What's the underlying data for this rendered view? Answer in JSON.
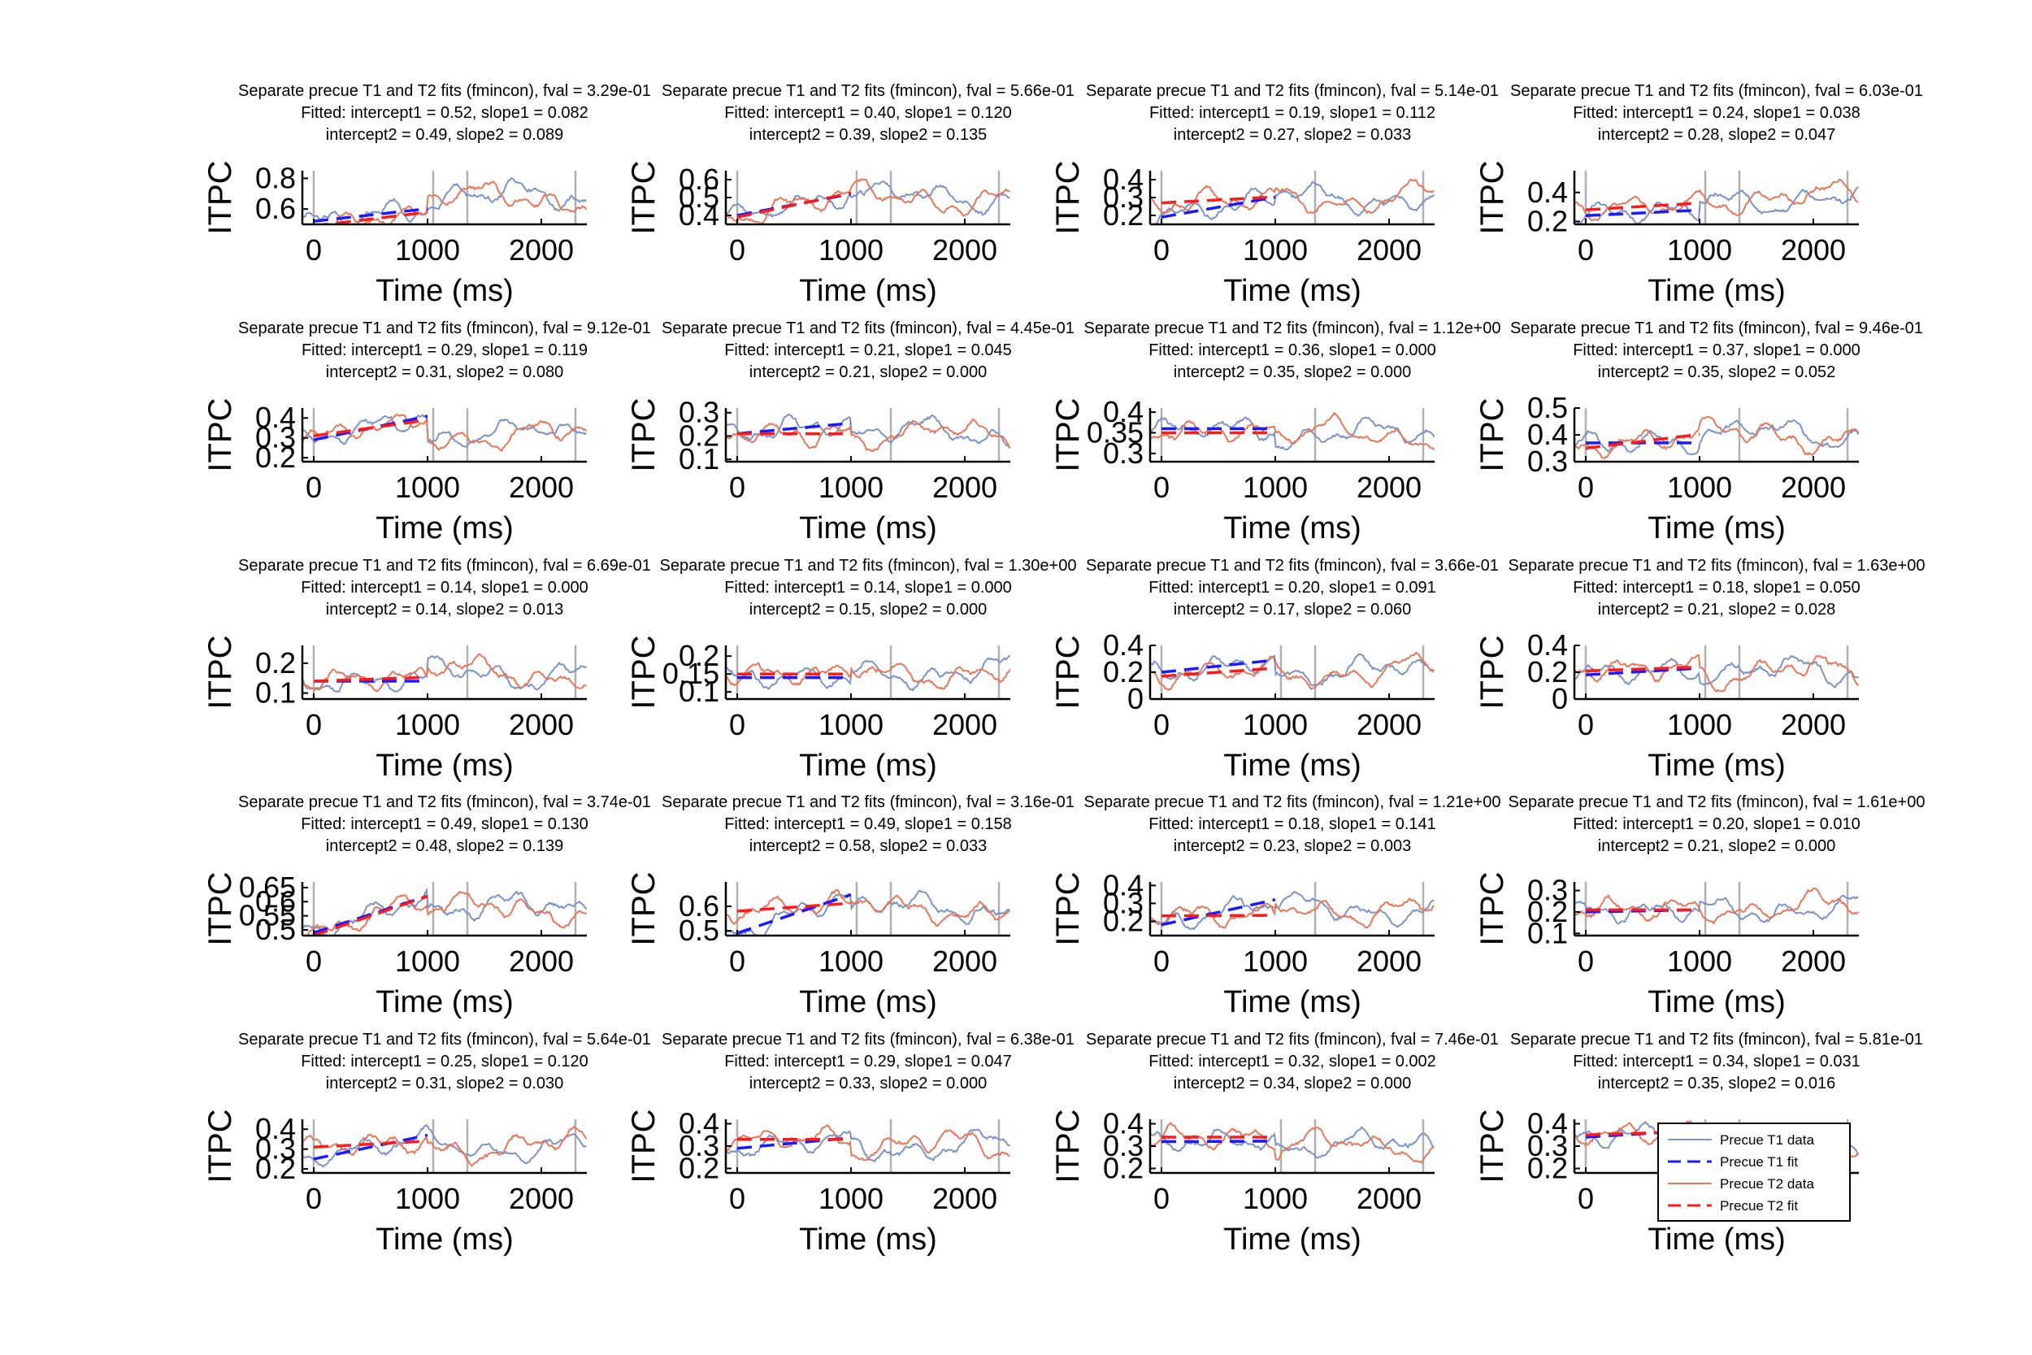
{
  "xlabel": "Time (ms)",
  "ylabel": "ITPC",
  "legend": {
    "placement": "inside-lower-right-of-last-panel",
    "entries": [
      {
        "label": "Precue T1 data",
        "color": "#7b93c9",
        "style": "solid"
      },
      {
        "label": "Precue T1 fit",
        "color": "#1a1aff",
        "style": "dashed"
      },
      {
        "label": "Precue T2 data",
        "color": "#e8775a",
        "style": "solid"
      },
      {
        "label": "Precue T2 fit",
        "color": "#ff1a1a",
        "style": "dashed"
      }
    ]
  },
  "colors": {
    "t1_data": "#7b93c9",
    "t1_fit": "#1a1aff",
    "t2_data": "#e8775a",
    "t2_fit": "#ff1a1a",
    "vline": "#b0b0b0"
  },
  "chart_data": [
    {
      "type": "line",
      "title_lines": [
        "Separate precue T1 and T2 fits (fmincon), fval = 3.29e-01",
        "Fitted: intercept1 = 0.52, slope1 = 0.082",
        "intercept2 = 0.49, slope2 = 0.089"
      ],
      "xlim": [
        -100,
        2400
      ],
      "ylim": [
        0.5,
        0.85
      ],
      "yticks": [
        0.6,
        0.8
      ],
      "ytick_labels": [
        "0.6",
        "0.8"
      ],
      "xticks": [
        0,
        1000,
        2000
      ],
      "vlines": [
        0,
        1050,
        1350,
        2300
      ],
      "fit": {
        "intercept1": 0.52,
        "slope1": 0.082,
        "intercept2": 0.49,
        "slope2": 0.089
      },
      "seed": 11
    },
    {
      "type": "line",
      "title_lines": [
        "Separate precue T1 and T2 fits (fmincon), fval = 5.66e-01",
        "Fitted: intercept1 = 0.40, slope1 = 0.120",
        "intercept2 = 0.39, slope2 = 0.135"
      ],
      "xlim": [
        -100,
        2400
      ],
      "ylim": [
        0.35,
        0.65
      ],
      "yticks": [
        0.4,
        0.5,
        0.6
      ],
      "ytick_labels": [
        "0.4",
        "0.5",
        "0.6"
      ],
      "xticks": [
        0,
        1000,
        2000
      ],
      "vlines": [
        0,
        1050,
        1350,
        2300
      ],
      "fit": {
        "intercept1": 0.4,
        "slope1": 0.12,
        "intercept2": 0.39,
        "slope2": 0.135
      },
      "seed": 12
    },
    {
      "type": "line",
      "title_lines": [
        "Separate precue T1 and T2 fits (fmincon), fval = 5.14e-01",
        "Fitted: intercept1 = 0.19, slope1 = 0.112",
        "intercept2 = 0.27, slope2 = 0.033"
      ],
      "xlim": [
        -100,
        2400
      ],
      "ylim": [
        0.15,
        0.45
      ],
      "yticks": [
        0.2,
        0.3,
        0.4
      ],
      "ytick_labels": [
        "0.2",
        "0.3",
        "0.4"
      ],
      "xticks": [
        0,
        1000,
        2000
      ],
      "vlines": [
        0,
        1350,
        2300
      ],
      "fit": {
        "intercept1": 0.19,
        "slope1": 0.112,
        "intercept2": 0.27,
        "slope2": 0.033
      },
      "seed": 13
    },
    {
      "type": "line",
      "title_lines": [
        "Separate precue T1 and T2 fits (fmincon), fval = 6.03e-01",
        "Fitted: intercept1 = 0.24, slope1 = 0.038",
        "intercept2 = 0.28, slope2 = 0.047"
      ],
      "xlim": [
        -100,
        2400
      ],
      "ylim": [
        0.18,
        0.55
      ],
      "yticks": [
        0.2,
        0.4
      ],
      "ytick_labels": [
        "0.2",
        "0.4"
      ],
      "xticks": [
        0,
        1000,
        2000
      ],
      "vlines": [
        0,
        1050,
        1350,
        2300
      ],
      "fit": {
        "intercept1": 0.24,
        "slope1": 0.038,
        "intercept2": 0.28,
        "slope2": 0.047
      },
      "seed": 14
    },
    {
      "type": "line",
      "title_lines": [
        "Separate precue T1 and T2 fits (fmincon), fval = 9.12e-01",
        "Fitted: intercept1 = 0.29, slope1 = 0.119",
        "intercept2 = 0.31, slope2 = 0.080"
      ],
      "xlim": [
        -100,
        2400
      ],
      "ylim": [
        0.18,
        0.45
      ],
      "yticks": [
        0.2,
        0.3,
        0.4
      ],
      "ytick_labels": [
        "0.2",
        "0.3",
        "0.4"
      ],
      "xticks": [
        0,
        1000,
        2000
      ],
      "vlines": [
        0,
        1050,
        1350,
        2300
      ],
      "fit": {
        "intercept1": 0.29,
        "slope1": 0.119,
        "intercept2": 0.31,
        "slope2": 0.08
      },
      "seed": 21
    },
    {
      "type": "line",
      "title_lines": [
        "Separate precue T1 and T2 fits (fmincon), fval = 4.45e-01",
        "Fitted: intercept1 = 0.21, slope1 = 0.045",
        "intercept2 = 0.21, slope2 = 0.000"
      ],
      "xlim": [
        -100,
        2400
      ],
      "ylim": [
        0.09,
        0.32
      ],
      "yticks": [
        0.1,
        0.2,
        0.3
      ],
      "ytick_labels": [
        "0.1",
        "0.2",
        "0.3"
      ],
      "xticks": [
        0,
        1000,
        2000
      ],
      "vlines": [
        0,
        1350,
        2300
      ],
      "fit": {
        "intercept1": 0.21,
        "slope1": 0.045,
        "intercept2": 0.21,
        "slope2": 0.0
      },
      "seed": 22
    },
    {
      "type": "line",
      "title_lines": [
        "Separate precue T1 and T2 fits (fmincon), fval = 1.12e+00",
        "Fitted: intercept1 = 0.36, slope1 = 0.000",
        "intercept2 = 0.35, slope2 = 0.000"
      ],
      "xlim": [
        -100,
        2400
      ],
      "ylim": [
        0.28,
        0.41
      ],
      "yticks": [
        0.3,
        0.35,
        0.4
      ],
      "ytick_labels": [
        "0.3",
        "0.35",
        "0.4"
      ],
      "xticks": [
        0,
        1000,
        2000
      ],
      "vlines": [
        0,
        1350,
        2300
      ],
      "fit": {
        "intercept1": 0.36,
        "slope1": 0.0,
        "intercept2": 0.35,
        "slope2": 0.0
      },
      "seed": 23
    },
    {
      "type": "line",
      "title_lines": [
        "Separate precue T1 and T2 fits (fmincon), fval = 9.46e-01",
        "Fitted: intercept1 = 0.37, slope1 = 0.000",
        "intercept2 = 0.35, slope2 = 0.052"
      ],
      "xlim": [
        -100,
        2400
      ],
      "ylim": [
        0.3,
        0.5
      ],
      "yticks": [
        0.3,
        0.4,
        0.5
      ],
      "ytick_labels": [
        "0.3",
        "0.4",
        "0.5"
      ],
      "xticks": [
        0,
        1000,
        2000
      ],
      "vlines": [
        0,
        1350,
        2300
      ],
      "fit": {
        "intercept1": 0.37,
        "slope1": 0.0,
        "intercept2": 0.35,
        "slope2": 0.052
      },
      "seed": 24
    },
    {
      "type": "line",
      "title_lines": [
        "Separate precue T1 and T2 fits (fmincon), fval = 6.69e-01",
        "Fitted: intercept1 = 0.14, slope1 = 0.000",
        "intercept2 = 0.14, slope2 = 0.013"
      ],
      "xlim": [
        -100,
        2400
      ],
      "ylim": [
        0.08,
        0.26
      ],
      "yticks": [
        0.1,
        0.2
      ],
      "ytick_labels": [
        "0.1",
        "0.2"
      ],
      "xticks": [
        0,
        1000,
        2000
      ],
      "vlines": [
        0,
        1350,
        2300
      ],
      "fit": {
        "intercept1": 0.14,
        "slope1": 0.0,
        "intercept2": 0.14,
        "slope2": 0.013
      },
      "seed": 31
    },
    {
      "type": "line",
      "title_lines": [
        "Separate precue T1 and T2 fits (fmincon), fval = 1.30e+00",
        "Fitted: intercept1 = 0.14, slope1 = 0.000",
        "intercept2 = 0.15, slope2 = 0.000"
      ],
      "xlim": [
        -100,
        2400
      ],
      "ylim": [
        0.08,
        0.23
      ],
      "yticks": [
        0.1,
        0.15,
        0.2
      ],
      "ytick_labels": [
        "0.1",
        "0.15",
        "0.2"
      ],
      "xticks": [
        0,
        1000,
        2000
      ],
      "vlines": [
        0,
        1350,
        2300
      ],
      "fit": {
        "intercept1": 0.14,
        "slope1": 0.0,
        "intercept2": 0.15,
        "slope2": 0.0
      },
      "seed": 32
    },
    {
      "type": "line",
      "title_lines": [
        "Separate precue T1 and T2 fits (fmincon), fval = 3.66e-01",
        "Fitted: intercept1 = 0.20, slope1 = 0.091",
        "intercept2 = 0.17, slope2 = 0.060"
      ],
      "xlim": [
        -100,
        2400
      ],
      "ylim": [
        0,
        0.4
      ],
      "yticks": [
        0,
        0.2,
        0.4
      ],
      "ytick_labels": [
        "0",
        "0.2",
        "0.4"
      ],
      "xticks": [
        0,
        1000,
        2000
      ],
      "vlines": [
        0,
        1050,
        1350,
        2300
      ],
      "fit": {
        "intercept1": 0.2,
        "slope1": 0.091,
        "intercept2": 0.17,
        "slope2": 0.06
      },
      "seed": 33
    },
    {
      "type": "line",
      "title_lines": [
        "Separate precue T1 and T2 fits (fmincon), fval = 1.63e+00",
        "Fitted: intercept1 = 0.18, slope1 = 0.050",
        "intercept2 = 0.21, slope2 = 0.028"
      ],
      "xlim": [
        -100,
        2400
      ],
      "ylim": [
        0,
        0.4
      ],
      "yticks": [
        0,
        0.2,
        0.4
      ],
      "ytick_labels": [
        "0",
        "0.2",
        "0.4"
      ],
      "xticks": [
        0,
        1000,
        2000
      ],
      "vlines": [
        0,
        1050,
        1350,
        2300
      ],
      "fit": {
        "intercept1": 0.18,
        "slope1": 0.05,
        "intercept2": 0.21,
        "slope2": 0.028
      },
      "seed": 34
    },
    {
      "type": "line",
      "title_lines": [
        "Separate precue T1 and T2 fits (fmincon), fval = 3.74e-01",
        "Fitted: intercept1 = 0.49, slope1 = 0.130",
        "intercept2 = 0.48, slope2 = 0.139"
      ],
      "xlim": [
        -100,
        2400
      ],
      "ylim": [
        0.48,
        0.67
      ],
      "yticks": [
        0.5,
        0.55,
        0.6,
        0.65
      ],
      "ytick_labels": [
        "0.5",
        "0.55",
        "0.6",
        "0.65"
      ],
      "xticks": [
        0,
        1000,
        2000
      ],
      "vlines": [
        0,
        1050,
        1350,
        2300
      ],
      "fit": {
        "intercept1": 0.49,
        "slope1": 0.13,
        "intercept2": 0.48,
        "slope2": 0.139
      },
      "seed": 41
    },
    {
      "type": "line",
      "title_lines": [
        "Separate precue T1 and T2 fits (fmincon), fval = 3.16e-01",
        "Fitted: intercept1 = 0.49, slope1 = 0.158",
        "intercept2 = 0.58, slope2 = 0.033"
      ],
      "xlim": [
        -100,
        2400
      ],
      "ylim": [
        0.48,
        0.7
      ],
      "yticks": [
        0.5,
        0.6
      ],
      "ytick_labels": [
        "0.5",
        "0.6"
      ],
      "xticks": [
        0,
        1000,
        2000
      ],
      "vlines": [
        0,
        1050,
        1350,
        2300
      ],
      "fit": {
        "intercept1": 0.49,
        "slope1": 0.158,
        "intercept2": 0.58,
        "slope2": 0.033
      },
      "seed": 42
    },
    {
      "type": "line",
      "title_lines": [
        "Separate precue T1 and T2 fits (fmincon), fval = 1.21e+00",
        "Fitted: intercept1 = 0.18, slope1 = 0.141",
        "intercept2 = 0.23, slope2 = 0.003"
      ],
      "xlim": [
        -100,
        2400
      ],
      "ylim": [
        0.12,
        0.42
      ],
      "yticks": [
        0.2,
        0.3,
        0.4
      ],
      "ytick_labels": [
        "0.2",
        "0.3",
        "0.4"
      ],
      "xticks": [
        0,
        1000,
        2000
      ],
      "vlines": [
        0,
        1350,
        2300
      ],
      "fit": {
        "intercept1": 0.18,
        "slope1": 0.141,
        "intercept2": 0.23,
        "slope2": 0.003
      },
      "seed": 43
    },
    {
      "type": "line",
      "title_lines": [
        "Separate precue T1 and T2 fits (fmincon), fval = 1.61e+00",
        "Fitted: intercept1 = 0.20, slope1 = 0.010",
        "intercept2 = 0.21, slope2 = 0.000"
      ],
      "xlim": [
        -100,
        2400
      ],
      "ylim": [
        0.09,
        0.34
      ],
      "yticks": [
        0.1,
        0.2,
        0.3
      ],
      "ytick_labels": [
        "0.1",
        "0.2",
        "0.3"
      ],
      "xticks": [
        0,
        1000,
        2000
      ],
      "vlines": [
        0,
        1050,
        1350,
        2300
      ],
      "fit": {
        "intercept1": 0.2,
        "slope1": 0.01,
        "intercept2": 0.21,
        "slope2": 0.0
      },
      "seed": 44
    },
    {
      "type": "line",
      "title_lines": [
        "Separate precue T1 and T2 fits (fmincon), fval = 5.64e-01",
        "Fitted: intercept1 = 0.25, slope1 = 0.120",
        "intercept2 = 0.31, slope2 = 0.030"
      ],
      "xlim": [
        -100,
        2400
      ],
      "ylim": [
        0.18,
        0.45
      ],
      "yticks": [
        0.2,
        0.3,
        0.4
      ],
      "ytick_labels": [
        "0.2",
        "0.3",
        "0.4"
      ],
      "xticks": [
        0,
        1000,
        2000
      ],
      "vlines": [
        0,
        1050,
        1350,
        2300
      ],
      "fit": {
        "intercept1": 0.25,
        "slope1": 0.12,
        "intercept2": 0.31,
        "slope2": 0.03
      },
      "seed": 51
    },
    {
      "type": "line",
      "title_lines": [
        "Separate precue T1 and T2 fits (fmincon), fval = 6.38e-01",
        "Fitted: intercept1 = 0.29, slope1 = 0.047",
        "intercept2 = 0.33, slope2 = 0.000"
      ],
      "xlim": [
        -100,
        2400
      ],
      "ylim": [
        0.18,
        0.42
      ],
      "yticks": [
        0.2,
        0.3,
        0.4
      ],
      "ytick_labels": [
        "0.2",
        "0.3",
        "0.4"
      ],
      "xticks": [
        0,
        1000,
        2000
      ],
      "vlines": [
        0,
        1350,
        2300
      ],
      "fit": {
        "intercept1": 0.29,
        "slope1": 0.047,
        "intercept2": 0.33,
        "slope2": 0.0
      },
      "seed": 52
    },
    {
      "type": "line",
      "title_lines": [
        "Separate precue T1 and T2 fits (fmincon), fval = 7.46e-01",
        "Fitted: intercept1 = 0.32, slope1 = 0.002",
        "intercept2 = 0.34, slope2 = 0.000"
      ],
      "xlim": [
        -100,
        2400
      ],
      "ylim": [
        0.18,
        0.42
      ],
      "yticks": [
        0.2,
        0.3,
        0.4
      ],
      "ytick_labels": [
        "0.2",
        "0.3",
        "0.4"
      ],
      "xticks": [
        0,
        1000,
        2000
      ],
      "vlines": [
        0,
        1050,
        1350,
        2300
      ],
      "fit": {
        "intercept1": 0.32,
        "slope1": 0.002,
        "intercept2": 0.34,
        "slope2": 0.0
      },
      "seed": 53
    },
    {
      "type": "line",
      "title_lines": [
        "Separate precue T1 and T2 fits (fmincon), fval = 5.81e-01",
        "Fitted: intercept1 = 0.34, slope1 = 0.031",
        "intercept2 = 0.35, slope2 = 0.016"
      ],
      "xlim": [
        -100,
        2400
      ],
      "ylim": [
        0.18,
        0.42
      ],
      "yticks": [
        0.2,
        0.3,
        0.4
      ],
      "ytick_labels": [
        "0.2",
        "0.3",
        "0.4"
      ],
      "xticks": [
        0
      ],
      "vlines": [
        0,
        1050,
        1350,
        2300
      ],
      "fit": {
        "intercept1": 0.34,
        "slope1": 0.031,
        "intercept2": 0.35,
        "slope2": 0.016
      },
      "seed": 54
    }
  ]
}
